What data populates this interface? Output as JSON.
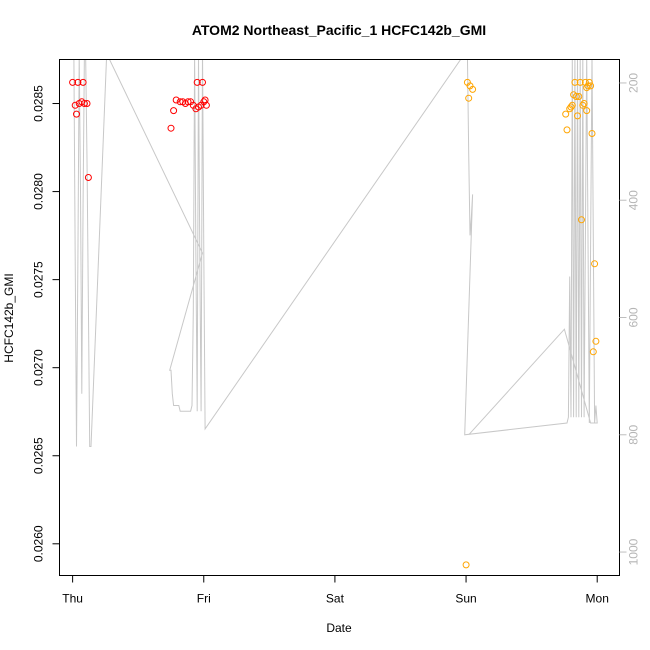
{
  "chart_data": {
    "type": "scatter",
    "title": "ATOM2 Northeast_Pacific_1 HCFC142b_GMI",
    "xlabel": "Date",
    "ylabel": "HCFC142b_GMI",
    "x_ticks": [
      "Thu",
      "Fri",
      "Sat",
      "Sun",
      "Mon"
    ],
    "xlim_days": [
      -0.1,
      4.17
    ],
    "ylim": [
      0.02582,
      0.02875
    ],
    "y_ticks": [
      0.026,
      0.0265,
      0.027,
      0.0275,
      0.028,
      0.0285
    ],
    "y_tick_labels": [
      "0.0260",
      "0.0265",
      "0.0270",
      "0.0275",
      "0.0280",
      "0.0285"
    ],
    "right_axis": {
      "ylim_reversed": [
        1040,
        160
      ],
      "ticks": [
        200,
        400,
        600,
        800,
        1000
      ],
      "tick_labels": [
        "200",
        "400",
        "600",
        "800",
        "1000"
      ],
      "color": "#bebebe"
    },
    "grid": false,
    "series": [
      {
        "color": "#ff0000",
        "marker": "open-circle",
        "points": [
          [
            0.0,
            0.02862
          ],
          [
            0.04,
            0.02862
          ],
          [
            0.08,
            0.02862
          ],
          [
            0.02,
            0.02849
          ],
          [
            0.05,
            0.0285
          ],
          [
            0.07,
            0.02851
          ],
          [
            0.09,
            0.0285
          ],
          [
            0.11,
            0.0285
          ],
          [
            0.03,
            0.02844
          ],
          [
            0.12,
            0.02808
          ],
          [
            0.75,
            0.02836
          ],
          [
            0.77,
            0.02846
          ],
          [
            0.79,
            0.02852
          ],
          [
            0.82,
            0.02851
          ],
          [
            0.84,
            0.02851
          ],
          [
            0.86,
            0.0285
          ],
          [
            0.88,
            0.02851
          ],
          [
            0.9,
            0.02851
          ],
          [
            0.92,
            0.02849
          ],
          [
            0.94,
            0.02847
          ],
          [
            0.95,
            0.02862
          ],
          [
            0.96,
            0.02848
          ],
          [
            0.98,
            0.02849
          ],
          [
            0.99,
            0.02862
          ],
          [
            1.0,
            0.02851
          ],
          [
            1.01,
            0.02852
          ],
          [
            1.02,
            0.02849
          ]
        ]
      },
      {
        "color": "#ffa500",
        "marker": "open-circle",
        "points": [
          [
            3.01,
            0.02862
          ],
          [
            3.03,
            0.0286
          ],
          [
            3.05,
            0.02858
          ],
          [
            3.02,
            0.02853
          ],
          [
            3.0,
            0.02588
          ],
          [
            3.76,
            0.02844
          ],
          [
            3.77,
            0.02835
          ],
          [
            3.79,
            0.02847
          ],
          [
            3.8,
            0.02848
          ],
          [
            3.81,
            0.02849
          ],
          [
            3.82,
            0.02855
          ],
          [
            3.83,
            0.02862
          ],
          [
            3.84,
            0.02854
          ],
          [
            3.85,
            0.02843
          ],
          [
            3.86,
            0.02854
          ],
          [
            3.87,
            0.02862
          ],
          [
            3.88,
            0.02784
          ],
          [
            3.89,
            0.02849
          ],
          [
            3.9,
            0.0285
          ],
          [
            3.91,
            0.02862
          ],
          [
            3.92,
            0.02859
          ],
          [
            3.92,
            0.02846
          ],
          [
            3.93,
            0.0286
          ],
          [
            3.94,
            0.02862
          ],
          [
            3.95,
            0.0286
          ],
          [
            3.96,
            0.02833
          ],
          [
            3.97,
            0.02709
          ],
          [
            3.98,
            0.02759
          ],
          [
            3.99,
            0.02715
          ]
        ]
      }
    ],
    "pressure_line": {
      "color": "#c8c8c8",
      "points": [
        [
          0.0,
          120
        ],
        [
          0.01,
          160
        ],
        [
          0.02,
          500
        ],
        [
          0.03,
          820
        ],
        [
          0.04,
          500
        ],
        [
          0.05,
          150
        ],
        [
          0.06,
          380
        ],
        [
          0.07,
          730
        ],
        [
          0.08,
          400
        ],
        [
          0.09,
          150
        ],
        [
          0.1,
          160
        ],
        [
          0.11,
          330
        ],
        [
          0.12,
          580
        ],
        [
          0.13,
          820
        ],
        [
          0.14,
          820
        ],
        [
          0.26,
          150
        ],
        [
          0.99,
          490
        ],
        [
          0.74,
          690
        ],
        [
          0.75,
          690
        ],
        [
          0.76,
          730
        ],
        [
          0.77,
          750
        ],
        [
          0.79,
          750
        ],
        [
          0.81,
          750
        ],
        [
          0.82,
          760
        ],
        [
          0.9,
          760
        ],
        [
          0.91,
          750
        ],
        [
          0.92,
          590
        ],
        [
          0.93,
          150
        ],
        [
          0.94,
          500
        ],
        [
          0.95,
          760
        ],
        [
          0.96,
          150
        ],
        [
          0.97,
          500
        ],
        [
          0.98,
          760
        ],
        [
          0.99,
          140
        ],
        [
          1.0,
          490
        ],
        [
          1.01,
          790
        ],
        [
          2.99,
          150
        ],
        [
          3.0,
          160
        ],
        [
          3.01,
          150
        ],
        [
          3.02,
          320
        ],
        [
          3.03,
          460
        ],
        [
          3.04,
          430
        ],
        [
          3.05,
          390
        ],
        [
          2.99,
          800
        ],
        [
          3.77,
          780
        ],
        [
          3.78,
          770
        ],
        [
          3.79,
          530
        ],
        [
          3.8,
          770
        ],
        [
          3.81,
          150
        ],
        [
          3.82,
          770
        ],
        [
          3.83,
          150
        ],
        [
          3.84,
          770
        ],
        [
          3.85,
          150
        ],
        [
          3.86,
          770
        ],
        [
          3.87,
          150
        ],
        [
          3.88,
          770
        ],
        [
          3.89,
          150
        ],
        [
          3.9,
          770
        ],
        [
          3.92,
          150
        ],
        [
          3.94,
          780
        ],
        [
          3.96,
          150
        ],
        [
          3.98,
          780
        ],
        [
          3.99,
          750
        ],
        [
          4.0,
          780
        ],
        [
          3.95,
          780
        ],
        [
          3.75,
          620
        ],
        [
          3.02,
          800
        ]
      ]
    }
  }
}
